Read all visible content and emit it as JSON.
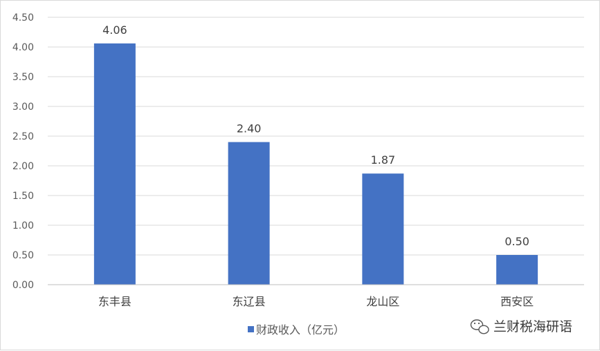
{
  "chart_data": {
    "type": "bar",
    "categories": [
      "东丰县",
      "东辽县",
      "龙山区",
      "西安区"
    ],
    "series": [
      {
        "name": "财政收入（亿元）",
        "values": [
          4.06,
          2.4,
          1.87,
          0.5
        ],
        "color": "#4472C4"
      }
    ],
    "data_labels": [
      "4.06",
      "2.40",
      "1.87",
      "0.50"
    ],
    "y_ticks": [
      "0.00",
      "0.50",
      "1.00",
      "1.50",
      "2.00",
      "2.50",
      "3.00",
      "3.50",
      "4.00",
      "4.50"
    ],
    "ylim": [
      0,
      4.5
    ],
    "grid": true,
    "legend_position": "bottom",
    "title": "",
    "xlabel": "",
    "ylabel": ""
  },
  "watermark": {
    "text": "兰财税海研语",
    "icon": "wechat-icon"
  },
  "colors": {
    "bar": "#4472C4",
    "grid": "#d9d9d9",
    "axis": "#bfbfbf"
  }
}
